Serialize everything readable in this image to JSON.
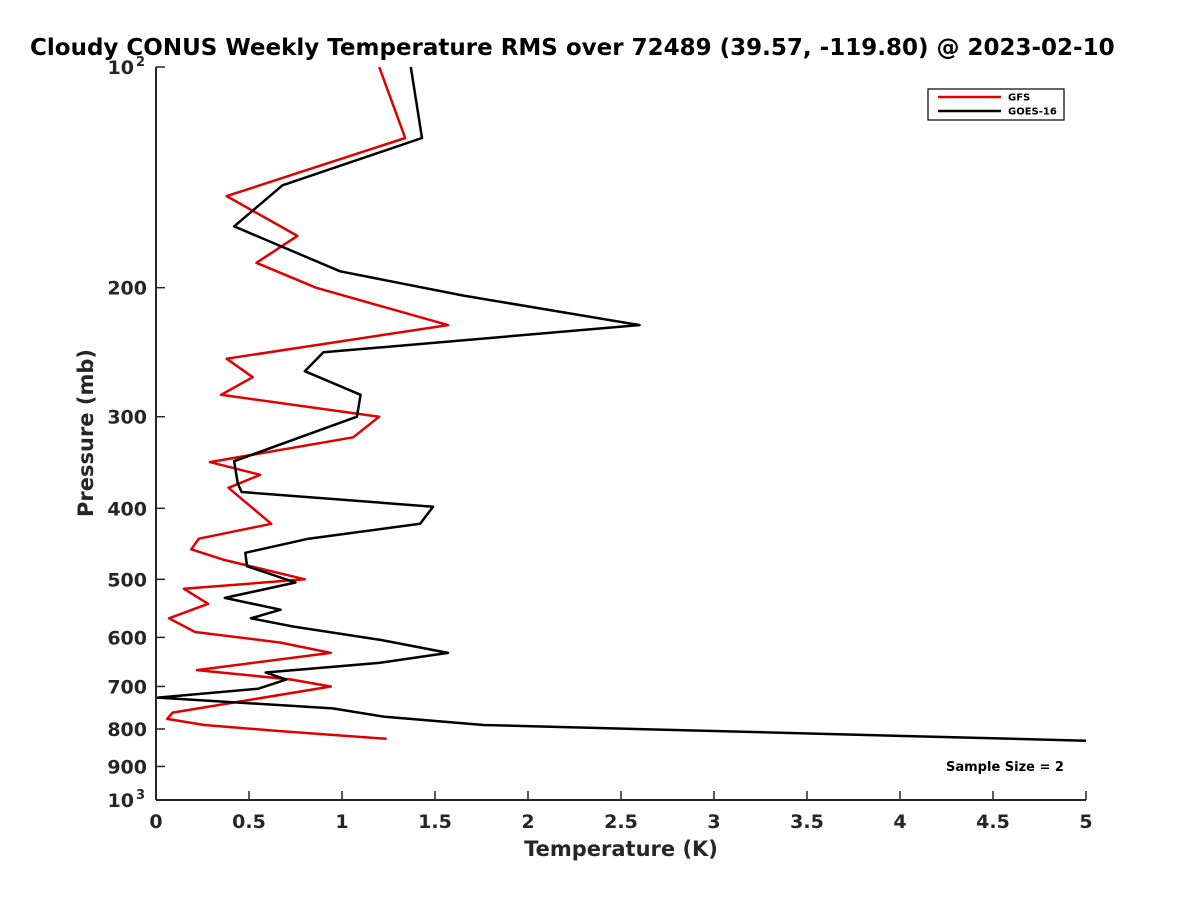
{
  "chart_data": {
    "type": "line",
    "title": "Cloudy CONUS Weekly Temperature RMS over 72489 (39.57, -119.80) @ 2023-02-10",
    "xlabel": "Temperature (K)",
    "ylabel": "Pressure (mb)",
    "xlim": [
      0,
      5
    ],
    "ylim": [
      100,
      1000
    ],
    "yscale": "log",
    "y_reversed": true,
    "grid": false,
    "legend_position": "top-right",
    "x_ticks": [
      "0",
      "0.5",
      "1",
      "1.5",
      "2",
      "2.5",
      "3",
      "3.5",
      "4",
      "4.5",
      "5"
    ],
    "y_ticks": [
      {
        "value": 100,
        "label": "10",
        "sup": "2"
      },
      {
        "value": 200,
        "label": "200"
      },
      {
        "value": 300,
        "label": "300"
      },
      {
        "value": 400,
        "label": "400"
      },
      {
        "value": 500,
        "label": "500"
      },
      {
        "value": 600,
        "label": "600"
      },
      {
        "value": 700,
        "label": "700"
      },
      {
        "value": 800,
        "label": "800"
      },
      {
        "value": 900,
        "label": "900"
      },
      {
        "value": 1000,
        "label": "10",
        "sup": "3"
      }
    ],
    "series": [
      {
        "name": "GFS",
        "color": "#e00000",
        "points": [
          [
            1.2,
            100
          ],
          [
            1.34,
            125
          ],
          [
            0.38,
            150
          ],
          [
            0.76,
            170
          ],
          [
            0.54,
            185
          ],
          [
            0.86,
            200
          ],
          [
            1.57,
            225
          ],
          [
            0.38,
            250
          ],
          [
            0.52,
            265
          ],
          [
            0.35,
            280
          ],
          [
            1.2,
            300
          ],
          [
            1.06,
            320
          ],
          [
            0.29,
            346
          ],
          [
            0.56,
            360
          ],
          [
            0.39,
            375
          ],
          [
            0.62,
            420
          ],
          [
            0.23,
            440
          ],
          [
            0.19,
            455
          ],
          [
            0.36,
            470
          ],
          [
            0.8,
            500
          ],
          [
            0.15,
            515
          ],
          [
            0.28,
            540
          ],
          [
            0.07,
            565
          ],
          [
            0.21,
            590
          ],
          [
            0.67,
            610
          ],
          [
            0.94,
            630
          ],
          [
            0.22,
            665
          ],
          [
            0.73,
            685
          ],
          [
            0.94,
            700
          ],
          [
            0.09,
            760
          ],
          [
            0.06,
            775
          ],
          [
            0.26,
            790
          ],
          [
            0.65,
            805
          ],
          [
            1.24,
            825
          ]
        ]
      },
      {
        "name": "GOES-16",
        "color": "#000000",
        "points": [
          [
            1.37,
            100
          ],
          [
            1.43,
            125
          ],
          [
            0.68,
            145
          ],
          [
            0.42,
            165
          ],
          [
            0.99,
            190
          ],
          [
            1.65,
            205
          ],
          [
            2.6,
            225
          ],
          [
            0.9,
            245
          ],
          [
            0.8,
            260
          ],
          [
            1.1,
            280
          ],
          [
            1.08,
            300
          ],
          [
            0.42,
            345
          ],
          [
            0.44,
            370
          ],
          [
            0.46,
            380
          ],
          [
            1.49,
            398
          ],
          [
            1.42,
            420
          ],
          [
            0.82,
            440
          ],
          [
            0.48,
            460
          ],
          [
            0.49,
            480
          ],
          [
            0.75,
            505
          ],
          [
            0.37,
            530
          ],
          [
            0.67,
            550
          ],
          [
            0.51,
            565
          ],
          [
            0.74,
            580
          ],
          [
            1.21,
            605
          ],
          [
            1.57,
            630
          ],
          [
            1.2,
            650
          ],
          [
            0.59,
            670
          ],
          [
            0.7,
            685
          ],
          [
            0.55,
            705
          ],
          [
            0.01,
            725
          ],
          [
            0.95,
            750
          ],
          [
            1.23,
            770
          ],
          [
            1.76,
            790
          ],
          [
            5.0,
            830
          ]
        ]
      }
    ],
    "annotation": "Sample Size = 2"
  }
}
